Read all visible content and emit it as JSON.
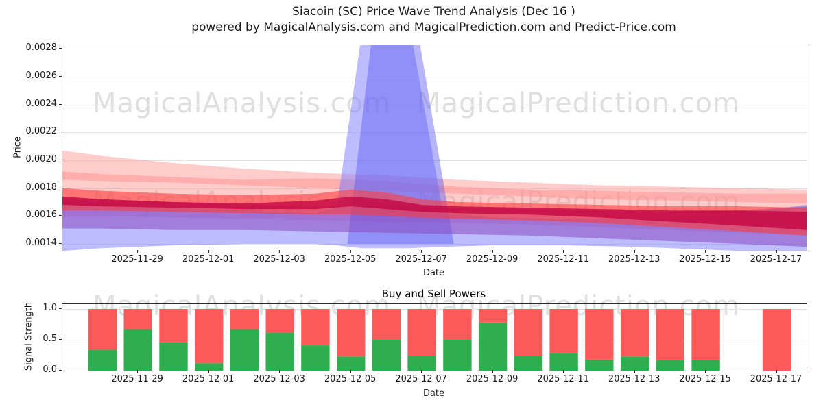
{
  "title": "Siacoin (SC) Price Wave Trend Analysis (Dec 16 )",
  "subtitle": "powered by MagicalAnalysis.com and MagicalPrediction.com and Predict-Price.com",
  "watermarks": {
    "analysis": "MagicalAnalysis.com",
    "prediction": "MagicalPrediction.com"
  },
  "xticks": [
    {
      "day": 1,
      "label": "2025-11-29"
    },
    {
      "day": 3,
      "label": "2025-12-01"
    },
    {
      "day": 5,
      "label": "2025-12-03"
    },
    {
      "day": 7,
      "label": "2025-12-05"
    },
    {
      "day": 9,
      "label": "2025-12-07"
    },
    {
      "day": 11,
      "label": "2025-12-09"
    },
    {
      "day": 13,
      "label": "2025-12-11"
    },
    {
      "day": 15,
      "label": "2025-12-13"
    },
    {
      "day": 17,
      "label": "2025-12-15"
    },
    {
      "day": 19,
      "label": "2025-12-17"
    }
  ],
  "price_chart": {
    "ylabel": "Price",
    "xlabel": "Date",
    "yticks": [
      {
        "value": 0.0028,
        "label": "0.0028"
      },
      {
        "value": 0.0026,
        "label": "0.0026"
      },
      {
        "value": 0.0024,
        "label": "0.0024"
      },
      {
        "value": 0.0022,
        "label": "0.0022"
      },
      {
        "value": 0.002,
        "label": "0.0020"
      },
      {
        "value": 0.0018,
        "label": "0.0018"
      },
      {
        "value": 0.0016,
        "label": "0.0016"
      },
      {
        "value": 0.0014,
        "label": "0.0014"
      }
    ]
  },
  "power_chart": {
    "title": "Buy and Sell Powers",
    "ylabel": "Signal Strength",
    "xlabel": "Date",
    "yticks": [
      {
        "value": 1.0,
        "label": "1.0"
      },
      {
        "value": 0.5,
        "label": "0.5"
      },
      {
        "value": 0.0,
        "label": "0.0"
      }
    ]
  },
  "chart_data": [
    {
      "type": "area",
      "title": "Price wave trend bands (fan chart)",
      "x_unit": "days since 2025-11-28",
      "xlim": [
        -1.13,
        19.84
      ],
      "ylim": [
        0.001351,
        0.002825
      ],
      "bands": [
        {
          "name": "outer-pink",
          "color": "#ff9999",
          "opacity": 0.5,
          "x": [
            -1.13,
            0,
            2,
            4,
            6,
            8,
            10,
            12,
            14,
            16,
            18,
            19.84
          ],
          "upper": [
            0.00207,
            0.00203,
            0.00198,
            0.00194,
            0.00191,
            0.00189,
            0.00186,
            0.00184,
            0.00182,
            0.00181,
            0.0018,
            0.00179
          ],
          "lower": [
            0.00186,
            0.00185,
            0.00184,
            0.00182,
            0.0018,
            0.00178,
            0.00176,
            0.00174,
            0.00172,
            0.00171,
            0.0017,
            0.00169
          ]
        },
        {
          "name": "mid-pink",
          "color": "#ff8080",
          "opacity": 0.4,
          "x": [
            -1.13,
            0,
            2,
            4,
            6,
            8,
            10,
            12,
            14,
            16,
            18,
            19.84
          ],
          "upper": [
            0.00192,
            0.0019,
            0.00188,
            0.00186,
            0.00187,
            0.00185,
            0.00181,
            0.00179,
            0.00178,
            0.00177,
            0.00176,
            0.00176
          ],
          "lower": [
            0.0016,
            0.0016,
            0.00159,
            0.00158,
            0.00157,
            0.00156,
            0.00155,
            0.00154,
            0.00152,
            0.0015,
            0.00148,
            0.00146
          ]
        },
        {
          "name": "support-blue",
          "color": "#7a7aff",
          "opacity": 0.5,
          "x": [
            -1.13,
            0,
            2,
            4,
            6,
            6.6,
            7.3,
            8.7,
            9.6,
            11,
            13,
            15,
            17,
            19.84
          ],
          "upper": [
            0.00171,
            0.00169,
            0.00166,
            0.00164,
            0.00162,
            0.00166,
            0.0029,
            0.0029,
            0.00162,
            0.00159,
            0.00158,
            0.00158,
            0.00159,
            0.00168
          ],
          "lower": [
            0.00135,
            0.00137,
            0.00139,
            0.0014,
            0.0014,
            0.00139,
            0.00137,
            0.00137,
            0.00138,
            0.00139,
            0.00139,
            0.00138,
            0.00136,
            0.00133
          ]
        },
        {
          "name": "spike-blue",
          "color": "#5c5cf0",
          "opacity": 0.45,
          "x": [
            6.9,
            7.6,
            8.9,
            9.9
          ],
          "upper": [
            0.0014,
            0.0029,
            0.0029,
            0.0014
          ],
          "lower": [
            0.0014,
            0.0014,
            0.0014,
            0.0014
          ]
        },
        {
          "name": "trend-purple",
          "color": "#8a4bbf",
          "opacity": 0.55,
          "x": [
            -1.13,
            0,
            2,
            4,
            6,
            8,
            10,
            12,
            14,
            16,
            18,
            19.84
          ],
          "upper": [
            0.00173,
            0.00172,
            0.0017,
            0.00168,
            0.00167,
            0.00167,
            0.00166,
            0.00165,
            0.00164,
            0.00163,
            0.00164,
            0.00167
          ],
          "lower": [
            0.00151,
            0.00151,
            0.0015,
            0.0015,
            0.00149,
            0.00148,
            0.00147,
            0.00146,
            0.00144,
            0.00142,
            0.0014,
            0.00138
          ]
        },
        {
          "name": "trend-red",
          "color": "#ff3b3b",
          "opacity": 0.6,
          "x": [
            -1.13,
            0,
            2,
            4,
            6,
            7,
            8,
            9,
            10,
            12,
            14,
            16,
            18,
            19.84
          ],
          "upper": [
            0.0018,
            0.00178,
            0.00176,
            0.00175,
            0.00176,
            0.00179,
            0.00177,
            0.00172,
            0.0017,
            0.00169,
            0.00168,
            0.00167,
            0.00167,
            0.00166
          ],
          "lower": [
            0.00164,
            0.00164,
            0.00163,
            0.00162,
            0.00161,
            0.00161,
            0.0016,
            0.00159,
            0.00158,
            0.00157,
            0.00155,
            0.00152,
            0.00149,
            0.00146
          ]
        },
        {
          "name": "core-crimson",
          "color": "#c00040",
          "opacity": 0.75,
          "x": [
            -1.13,
            0,
            2,
            4,
            6,
            7,
            8,
            9,
            10,
            12,
            14,
            16,
            18,
            19.84
          ],
          "upper": [
            0.00174,
            0.00172,
            0.0017,
            0.00169,
            0.00171,
            0.00174,
            0.00172,
            0.00168,
            0.00167,
            0.00166,
            0.00165,
            0.00164,
            0.00164,
            0.00163
          ],
          "lower": [
            0.00168,
            0.00167,
            0.00166,
            0.00165,
            0.00165,
            0.00167,
            0.00165,
            0.00163,
            0.00162,
            0.00161,
            0.00159,
            0.00156,
            0.00153,
            0.0015
          ]
        }
      ]
    },
    {
      "type": "stacked_bar",
      "title": "Buy and Sell Powers",
      "xlim": [
        -1.13,
        19.84
      ],
      "ylim": [
        0,
        1.078
      ],
      "bar_width_days": 0.8,
      "categories": [
        "2025-11-28",
        "2025-11-29",
        "2025-11-30",
        "2025-12-01",
        "2025-12-02",
        "2025-12-03",
        "2025-12-04",
        "2025-12-05",
        "2025-12-06",
        "2025-12-07",
        "2025-12-08",
        "2025-12-09",
        "2025-12-10",
        "2025-12-11",
        "2025-12-12",
        "2025-12-13",
        "2025-12-14",
        "2025-12-15",
        "2025-12-17"
      ],
      "days": [
        0,
        1,
        2,
        3,
        4,
        5,
        6,
        7,
        8,
        9,
        10,
        11,
        12,
        13,
        14,
        15,
        16,
        17,
        19
      ],
      "series": [
        {
          "name": "Buy",
          "color": "#2eae4e",
          "values": [
            0.34,
            0.67,
            0.46,
            0.12,
            0.67,
            0.62,
            0.41,
            0.23,
            0.51,
            0.24,
            0.51,
            0.78,
            0.24,
            0.28,
            0.18,
            0.23,
            0.17,
            0.17,
            0.0
          ]
        },
        {
          "name": "Sell",
          "color": "#fc5a5a",
          "values": [
            0.66,
            0.33,
            0.54,
            0.88,
            0.33,
            0.38,
            0.59,
            0.77,
            0.49,
            0.76,
            0.49,
            0.22,
            0.76,
            0.72,
            0.82,
            0.77,
            0.83,
            0.83,
            1.0
          ]
        }
      ]
    }
  ]
}
